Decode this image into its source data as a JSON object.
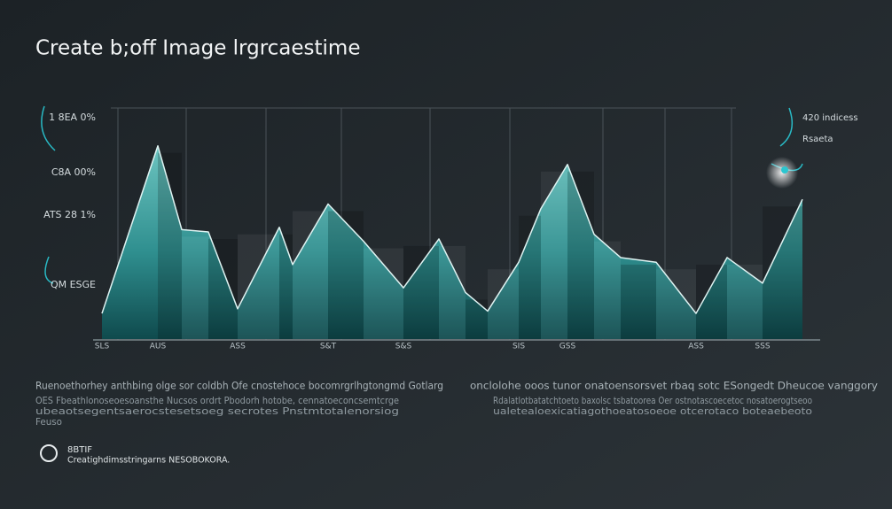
{
  "chart_data": {
    "type": "area",
    "title": "Create b;off Image lrgrcaestime",
    "y_labels": [
      "1 8EA 0%",
      "C8A 00%",
      "ATS 28 1%",
      "QM ESGE"
    ],
    "side_labels": [
      "420 indicess",
      "Rsaeta"
    ],
    "categories": [
      "SLS",
      "AUS",
      null,
      null,
      "ASS",
      null,
      null,
      "S&T",
      null,
      "S&S",
      null,
      null,
      null,
      "SIS",
      null,
      "GSS",
      null,
      null,
      null,
      "ASS",
      null,
      "SSS",
      null
    ],
    "values": [
      11,
      83,
      47,
      46,
      13,
      48,
      32,
      58,
      42,
      22,
      43,
      20,
      12,
      33,
      56,
      75,
      45,
      35,
      33,
      11,
      35,
      24,
      60
    ],
    "color": "#3fa7a6",
    "ylim": [
      0,
      100
    ],
    "paragraphs": [
      {
        "heading": "Ruenoethorhey anthbing olge sor coldbh Ofe cnostehoce bocomrgrlhgtongmd Gotlarg",
        "lines": [
          "OES Fbeathlonoseoesoansthe Nucsos ordrt Pbodorh hotobe, cennatoeconcsemtcrge",
          "ubeaotsegentsaerocstesetsoeg secrotes Pnstmtotalenorsiog",
          "Feuso"
        ]
      },
      {
        "heading": "onclolohe ooos tunor onatoensorsvet rbaq sotc ESongedt Dheucoe vanggory",
        "lines": [
          "Rdalatlotbatatchtoeto baxolsc tsbatoorea Oer ostnotascoecetoc nosatoerogtseoo",
          "ualetealoexicatiagothoeatosoeoe otcerotaco boteaebeoto"
        ]
      }
    ],
    "footer_badge": "8BTIF",
    "footer_text": "Creatighdimsstringarns NESOBOKORA."
  }
}
